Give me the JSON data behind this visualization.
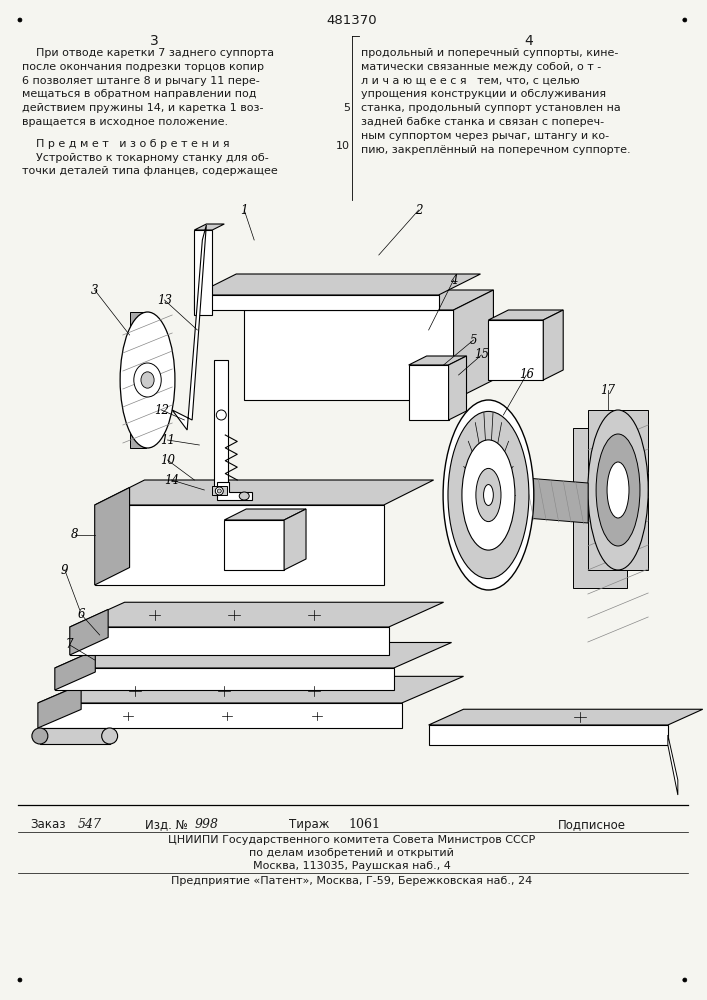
{
  "page_number": "481370",
  "col_left_num": "3",
  "col_right_num": "4",
  "left_text_lines": [
    "    При отводе каретки 7 заднего суппорта",
    "после окончания подрезки торцов копир",
    "6 позволяет штанге 8 и рычагу 11 пере-",
    "мещаться в обратном направлении под",
    "действием пружины 14, и каретка 1 воз-",
    "вращается в исходное положение.",
    "    П р е д м е т   и з о б р е т е н и я",
    "    Устройство к токарному станку для об-",
    "точки деталей типа фланцев, содержащее"
  ],
  "right_text_lines": [
    "продольный и поперечный суппорты, кине-",
    "матически связанные между собой, о т -",
    "л и ч а ю щ е е с я   тем, что, с целью",
    "упрощения конструкции и обслуживания",
    "станка, продольный суппорт установлен на",
    "задней бабке станка и связан с попереч-",
    "ным суппортом через рычаг, штангу и ко-",
    "пию, закреплённый на поперечном суппорте."
  ],
  "line_number_5": "5",
  "line_number_10": "10",
  "footer_order_label": "Заказ",
  "footer_order_val": "547",
  "footer_izd_label": "Изд. №",
  "footer_izd_val": "998",
  "footer_tirazh_label": "Тираж",
  "footer_tirazh_val": "1061",
  "footer_podp": "Подписное",
  "footer_org": "ЦНИИПИ Государственного комитета Совета Министров СССР",
  "footer_dept": "по делам изобретений и открытий",
  "footer_addr": "Москва, 113035, Раушская наб., 4",
  "footer_company": "Предприятие «Патент», Москва, Г-59, Бережковская наб., 24",
  "bg_color": "#f5f5f0",
  "text_color": "#1a1a1a",
  "black": "#000000",
  "gray1": "#cccccc",
  "gray2": "#aaaaaa",
  "gray3": "#888888",
  "gray4": "#666666",
  "white": "#ffffff"
}
